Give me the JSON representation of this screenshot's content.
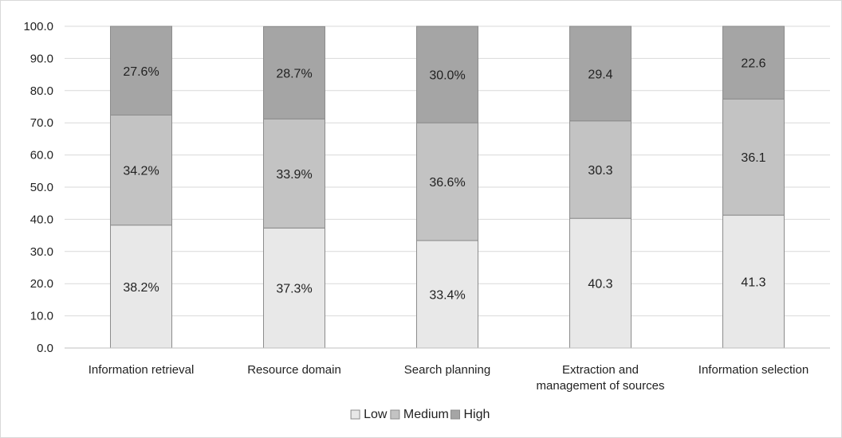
{
  "chart_data": {
    "type": "bar",
    "stacked": true,
    "percent_stacked": true,
    "title": "",
    "xlabel": "",
    "ylabel": "",
    "ylim": [
      0,
      100
    ],
    "y_ticks": [
      "0.0",
      "10.0",
      "20.0",
      "30.0",
      "40.0",
      "50.0",
      "60.0",
      "70.0",
      "80.0",
      "90.0",
      "100.0"
    ],
    "y_tick_values": [
      0,
      10,
      20,
      30,
      40,
      50,
      60,
      70,
      80,
      90,
      100
    ],
    "grid": true,
    "legend_position": "bottom",
    "categories": [
      [
        "Information retrieval"
      ],
      [
        "Resource domain"
      ],
      [
        "Search planning"
      ],
      [
        "Extraction and",
        "management of sources"
      ],
      [
        "Information selection"
      ]
    ],
    "series": [
      {
        "name": "Low",
        "color": "#e8e8e8",
        "values": [
          38.2,
          37.3,
          33.4,
          40.3,
          41.3
        ],
        "labels": [
          "38.2%",
          "37.3%",
          "33.4%",
          "40.3",
          "41.3"
        ]
      },
      {
        "name": "Medium",
        "color": "#c3c3c3",
        "values": [
          34.2,
          33.9,
          36.6,
          30.3,
          36.1
        ],
        "labels": [
          "34.2%",
          "33.9%",
          "36.6%",
          "30.3",
          "36.1"
        ]
      },
      {
        "name": "High",
        "color": "#a5a5a5",
        "values": [
          27.6,
          28.7,
          30.0,
          29.4,
          22.6
        ],
        "labels": [
          "27.6%",
          "28.7%",
          "30.0%",
          "29.4",
          "22.6"
        ]
      }
    ]
  }
}
